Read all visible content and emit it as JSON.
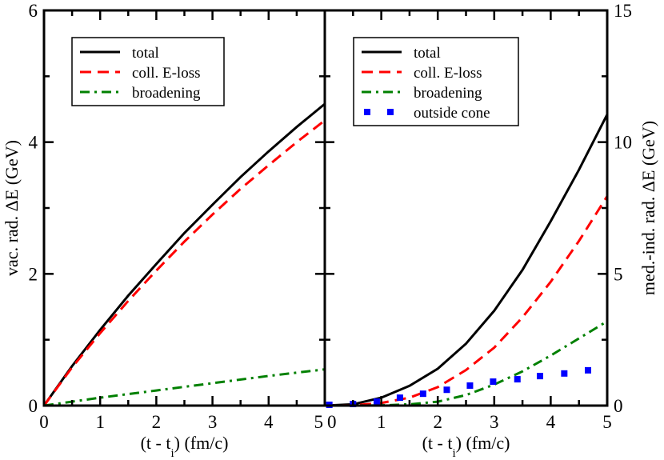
{
  "chart_data": [
    {
      "type": "line",
      "panel": "left",
      "xlabel": "(t - t",
      "xlabel_sub": "i",
      "xlabel_end": ") (fm/c)",
      "ylabel": "vac. rad. ΔE (GeV)",
      "xlim": [
        0,
        5
      ],
      "ylim": [
        0,
        6
      ],
      "xticks": [
        "0",
        "1",
        "2",
        "3",
        "4",
        "5"
      ],
      "yticks": [
        "0",
        "2",
        "4",
        "6"
      ],
      "yaxis_side": "left",
      "legend_position": "top-left",
      "series": [
        {
          "name": "total",
          "color": "#000000",
          "style": "solid",
          "x": [
            0,
            0.5,
            1,
            1.5,
            2,
            2.5,
            3,
            3.5,
            4,
            4.5,
            5
          ],
          "y": [
            0,
            0.6,
            1.15,
            1.67,
            2.15,
            2.62,
            3.05,
            3.47,
            3.86,
            4.23,
            4.58
          ]
        },
        {
          "name": "coll. E-loss",
          "color": "#ff0000",
          "style": "dashed",
          "x": [
            0,
            0.5,
            1,
            1.5,
            2,
            2.5,
            3,
            3.5,
            4,
            4.5,
            5
          ],
          "y": [
            0,
            0.58,
            1.1,
            1.59,
            2.05,
            2.49,
            2.9,
            3.29,
            3.65,
            4.0,
            4.33
          ]
        },
        {
          "name": "broadening",
          "color": "#008000",
          "style": "dashdot",
          "x": [
            0,
            1,
            2,
            3,
            4,
            5
          ],
          "y": [
            0,
            0.12,
            0.23,
            0.34,
            0.45,
            0.55
          ]
        }
      ]
    },
    {
      "type": "line",
      "panel": "right",
      "xlabel": "(t - t",
      "xlabel_sub": "i",
      "xlabel_end": ") (fm/c)",
      "ylabel": "med.-ind. rad. ΔE (GeV)",
      "xlim": [
        0,
        5
      ],
      "ylim": [
        0,
        15
      ],
      "xticks": [
        "0",
        "1",
        "2",
        "3",
        "4",
        "5"
      ],
      "yticks": [
        "0",
        "5",
        "10",
        "15"
      ],
      "yaxis_side": "right",
      "legend_position": "top-left",
      "series": [
        {
          "name": "total",
          "color": "#000000",
          "style": "solid",
          "x": [
            0,
            0.5,
            1,
            1.5,
            2,
            2.5,
            3,
            3.5,
            4,
            4.5,
            5
          ],
          "y": [
            0,
            0.05,
            0.3,
            0.75,
            1.4,
            2.35,
            3.6,
            5.15,
            7.0,
            8.95,
            11.05
          ]
        },
        {
          "name": "coll. E-loss",
          "color": "#ff0000",
          "style": "dashed",
          "x": [
            0,
            0.5,
            1,
            1.5,
            2,
            2.5,
            3,
            3.5,
            4,
            4.5,
            5
          ],
          "y": [
            0,
            0.01,
            0.1,
            0.3,
            0.7,
            1.35,
            2.2,
            3.35,
            4.7,
            6.25,
            7.95
          ]
        },
        {
          "name": "broadening",
          "color": "#008000",
          "style": "dashdot",
          "x": [
            0,
            0.5,
            1,
            1.5,
            2,
            2.5,
            3,
            3.5,
            4,
            4.5,
            5
          ],
          "y": [
            0,
            0,
            0.01,
            0.05,
            0.15,
            0.4,
            0.8,
            1.3,
            1.9,
            2.55,
            3.2
          ]
        },
        {
          "name": "outside cone",
          "color": "#0000ff",
          "style": "squares",
          "x": [
            0.08,
            0.5,
            0.92,
            1.33,
            1.74,
            2.16,
            2.57,
            2.98,
            3.41,
            3.81,
            4.24,
            4.66
          ],
          "y": [
            0.03,
            0.06,
            0.15,
            0.3,
            0.45,
            0.6,
            0.76,
            0.91,
            1.0,
            1.12,
            1.22,
            1.34
          ]
        }
      ]
    }
  ]
}
